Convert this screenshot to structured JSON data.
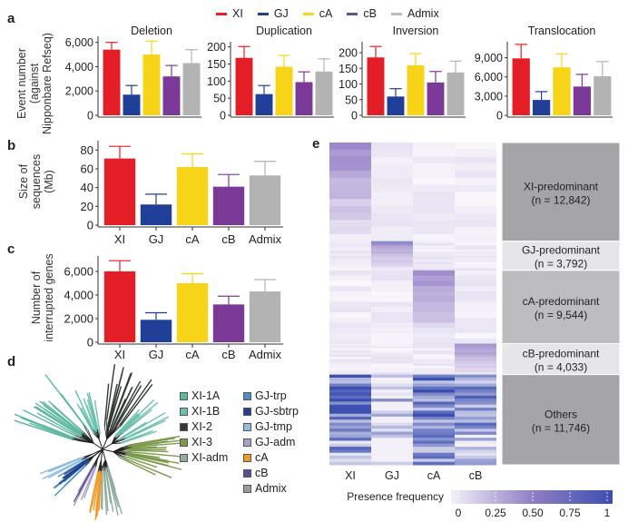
{
  "panels": {
    "a": "a",
    "b": "b",
    "c": "c",
    "d": "d",
    "e": "e"
  },
  "groups": [
    "XI",
    "GJ",
    "cA",
    "cB",
    "Admix"
  ],
  "colors": {
    "XI": "#e41e26",
    "GJ": "#1f3f99",
    "cA": "#f7d417",
    "cB": "#7b3a98",
    "Admix": "#b3b3b3"
  },
  "legend": [
    {
      "label": "XI",
      "color": "#e41e26"
    },
    {
      "label": "GJ",
      "color": "#1f3f99"
    },
    {
      "label": "cA",
      "color": "#f7d417"
    },
    {
      "label": "cB",
      "color": "#5a5a8a"
    },
    {
      "label": "Admix",
      "color": "#bbbbbb"
    }
  ],
  "chart_data": [
    {
      "id": "a-deletion",
      "type": "bar",
      "title": "Deletion",
      "ylabel": "Event number (against Nipponbare Refseq)",
      "categories": [
        "XI",
        "GJ",
        "cA",
        "cB",
        "Admix"
      ],
      "values": [
        5400,
        1700,
        5000,
        3200,
        4300
      ],
      "errors": [
        600,
        750,
        1100,
        900,
        1100
      ],
      "ylim": [
        0,
        6500
      ],
      "yticks": [
        0,
        2000,
        4000,
        6000
      ],
      "ytick_labels": [
        "0",
        "2,000",
        "4,000",
        "6,000"
      ]
    },
    {
      "id": "a-duplication",
      "type": "bar",
      "title": "Duplication",
      "categories": [
        "XI",
        "GJ",
        "cA",
        "cB",
        "Admix"
      ],
      "values": [
        168,
        62,
        142,
        97,
        128
      ],
      "errors": [
        33,
        25,
        33,
        30,
        37
      ],
      "ylim": [
        0,
        215
      ],
      "yticks": [
        0,
        50,
        100,
        150,
        200
      ],
      "ytick_labels": [
        "0",
        "50",
        "100",
        "150",
        "200"
      ]
    },
    {
      "id": "a-inversion",
      "type": "bar",
      "title": "Inversion",
      "categories": [
        "XI",
        "GJ",
        "cA",
        "cB",
        "Admix"
      ],
      "values": [
        185,
        60,
        160,
        105,
        137
      ],
      "errors": [
        35,
        25,
        37,
        35,
        36
      ],
      "ylim": [
        0,
        235
      ],
      "yticks": [
        0,
        50,
        100,
        150,
        200
      ],
      "ytick_labels": [
        "0",
        "50",
        "100",
        "150",
        "200"
      ]
    },
    {
      "id": "a-translocation",
      "type": "bar",
      "title": "Translocation",
      "categories": [
        "XI",
        "GJ",
        "cA",
        "cB",
        "Admix"
      ],
      "values": [
        8900,
        2400,
        7500,
        4500,
        6100
      ],
      "errors": [
        2200,
        1300,
        2100,
        1900,
        2300
      ],
      "ylim": [
        0,
        11500
      ],
      "yticks": [
        0,
        3000,
        6000,
        9000
      ],
      "ytick_labels": [
        "0",
        "3,000",
        "6,000",
        "9,000"
      ]
    },
    {
      "id": "b-size",
      "type": "bar",
      "title": "",
      "ylabel": "Size of sequences (Mb)",
      "categories": [
        "XI",
        "GJ",
        "cA",
        "cB",
        "Admix"
      ],
      "values": [
        71,
        22,
        62,
        41,
        53
      ],
      "errors": [
        13,
        11,
        14,
        13,
        15
      ],
      "ylim": [
        0,
        90
      ],
      "yticks": [
        0,
        20,
        40,
        60,
        80
      ],
      "ytick_labels": [
        "0",
        "20",
        "40",
        "60",
        "80"
      ]
    },
    {
      "id": "c-genes",
      "type": "bar",
      "title": "",
      "ylabel": "Number of interrupted genes",
      "categories": [
        "XI",
        "GJ",
        "cA",
        "cB",
        "Admix"
      ],
      "values": [
        6000,
        1900,
        5000,
        3200,
        4300
      ],
      "errors": [
        900,
        600,
        800,
        700,
        1000
      ],
      "ylim": [
        0,
        7300
      ],
      "yticks": [
        0,
        2000,
        4000,
        6000
      ],
      "ytick_labels": [
        "0",
        "2,000",
        "4,000",
        "6,000"
      ]
    },
    {
      "id": "e-heatmap",
      "type": "heatmap",
      "columns": [
        "XI",
        "GJ",
        "cA",
        "cB"
      ],
      "row_groups": [
        {
          "label": "XI-predominant",
          "n": "(n = 12,842)",
          "count": 12842,
          "box_color": "#a5a5a8"
        },
        {
          "label": "GJ-predominant",
          "n": "(n = 3,792)",
          "count": 3792,
          "box_color": "#e6e6e8"
        },
        {
          "label": "cA-predominant",
          "n": "(n = 9,544)",
          "count": 9544,
          "box_color": "#bdbdc0"
        },
        {
          "label": "cB-predominant",
          "n": "(n = 4,033)",
          "count": 4033,
          "box_color": "#e6e6e8"
        },
        {
          "label": "Others",
          "n": "(n = 11,746)",
          "count": 11746,
          "box_color": "#a5a5a8"
        }
      ],
      "colorbar": {
        "label": "Presence frequency",
        "range": [
          0,
          1
        ],
        "ticks": [
          "0",
          "0.25",
          "0.50",
          "0.75",
          "1"
        ],
        "low": "#f3f0f8",
        "high": "#3b4fb0"
      }
    }
  ],
  "tree_legend": [
    {
      "label": "XI-1A",
      "color": "#5fb8a0"
    },
    {
      "label": "XI-1B",
      "color": "#6cc0b0"
    },
    {
      "label": "XI-2",
      "color": "#2f3b33"
    },
    {
      "label": "XI-3",
      "color": "#7c9a4c"
    },
    {
      "label": "XI-adm",
      "color": "#90ad9c"
    },
    {
      "label": "GJ-trp",
      "color": "#4a8fc8"
    },
    {
      "label": "GJ-sbtrp",
      "color": "#23428f"
    },
    {
      "label": "GJ-tmp",
      "color": "#8fbcdf"
    },
    {
      "label": "GJ-adm",
      "color": "#a99fcb"
    },
    {
      "label": "cA",
      "color": "#f29a28"
    },
    {
      "label": "cB",
      "color": "#5b4d9a"
    },
    {
      "label": "Admix",
      "color": "#9b9b9b"
    }
  ]
}
